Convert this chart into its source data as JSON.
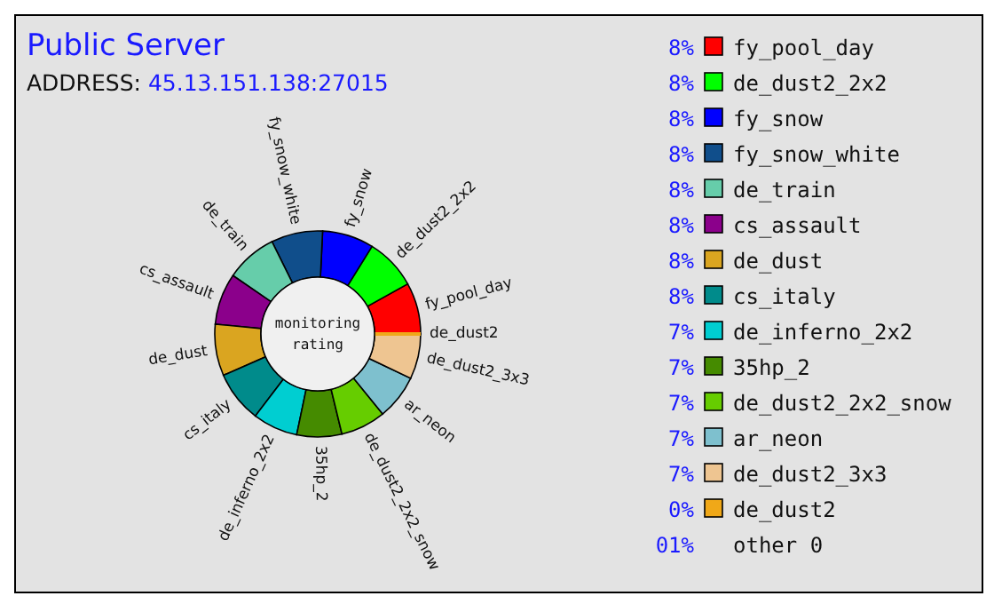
{
  "chart_data": {
    "type": "donut",
    "title": "Public Server",
    "subtitle": "ADDRESS: 45.13.151.138:27015",
    "categories": [
      "fy_pool_day",
      "de_dust2_2x2",
      "fy_snow",
      "fy_snow_white",
      "de_train",
      "cs_assault",
      "de_dust",
      "cs_italy",
      "de_inferno_2x2",
      "35hp_2",
      "de_dust2_2x2_snow",
      "ar_neon",
      "de_dust2_3x3",
      "de_dust2"
    ],
    "values": [
      8,
      8,
      8,
      8,
      8,
      8,
      8,
      8,
      7,
      7,
      7,
      7,
      7,
      0
    ],
    "value_labels": [
      "8%",
      "8%",
      "8%",
      "8%",
      "8%",
      "8%",
      "8%",
      "8%",
      "7%",
      "7%",
      "7%",
      "7%",
      "7%",
      "0%"
    ],
    "colors": [
      "#ff0000",
      "#00ff00",
      "#0000ff",
      "#104e8b",
      "#66cdaa",
      "#8b008b",
      "#daa520",
      "#008b8b",
      "#00ced1",
      "#458b00",
      "#66cd00",
      "#7ec0ce",
      "#eec591",
      "#f0a818"
    ],
    "annotations": [
      "monitoring",
      "rating",
      "01% other 0"
    ],
    "legend": "right"
  }
}
